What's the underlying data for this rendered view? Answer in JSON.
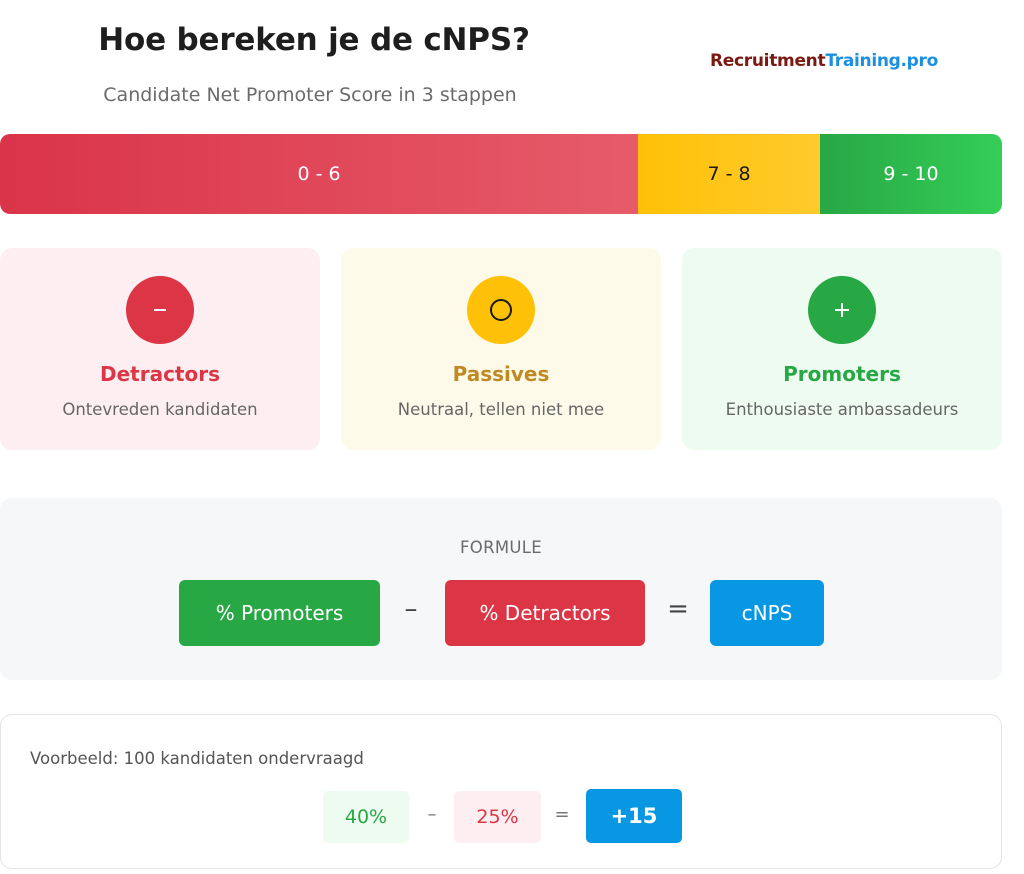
{
  "header": {
    "title": "Hoe bereken je de cNPS?",
    "subtitle": "Candidate Net Promoter Score in 3 stappen",
    "logo": {
      "part1": "Recruitment",
      "part2": "Training.pro",
      "color1": "#7a1a12",
      "color2": "#1a8fe3"
    }
  },
  "scale": {
    "segments": [
      {
        "label": "0 - 6",
        "color": "#dc3545"
      },
      {
        "label": "7 - 8",
        "color": "#ffc107"
      },
      {
        "label": "9 - 10",
        "color": "#28a745"
      }
    ]
  },
  "categories": [
    {
      "icon": "minus-icon",
      "title": "Detractors",
      "description": "Ontevreden kandidaten",
      "color": "#dc3545"
    },
    {
      "icon": "circle-icon",
      "title": "Passives",
      "description": "Neutraal, tellen niet mee",
      "color": "#ffc107"
    },
    {
      "icon": "plus-icon",
      "title": "Promoters",
      "description": "Enthousiaste ambassadeurs",
      "color": "#28a745"
    }
  ],
  "formula": {
    "label": "FORMULE",
    "term1": "% Promoters",
    "operator1": "–",
    "term2": "% Detractors",
    "operator2": "=",
    "result": "cNPS"
  },
  "example": {
    "label": "Voorbeeld: 100 kandidaten ondervraagd",
    "promoters": "40%",
    "operator1": "–",
    "detractors": "25%",
    "operator2": "=",
    "result": "+15"
  }
}
